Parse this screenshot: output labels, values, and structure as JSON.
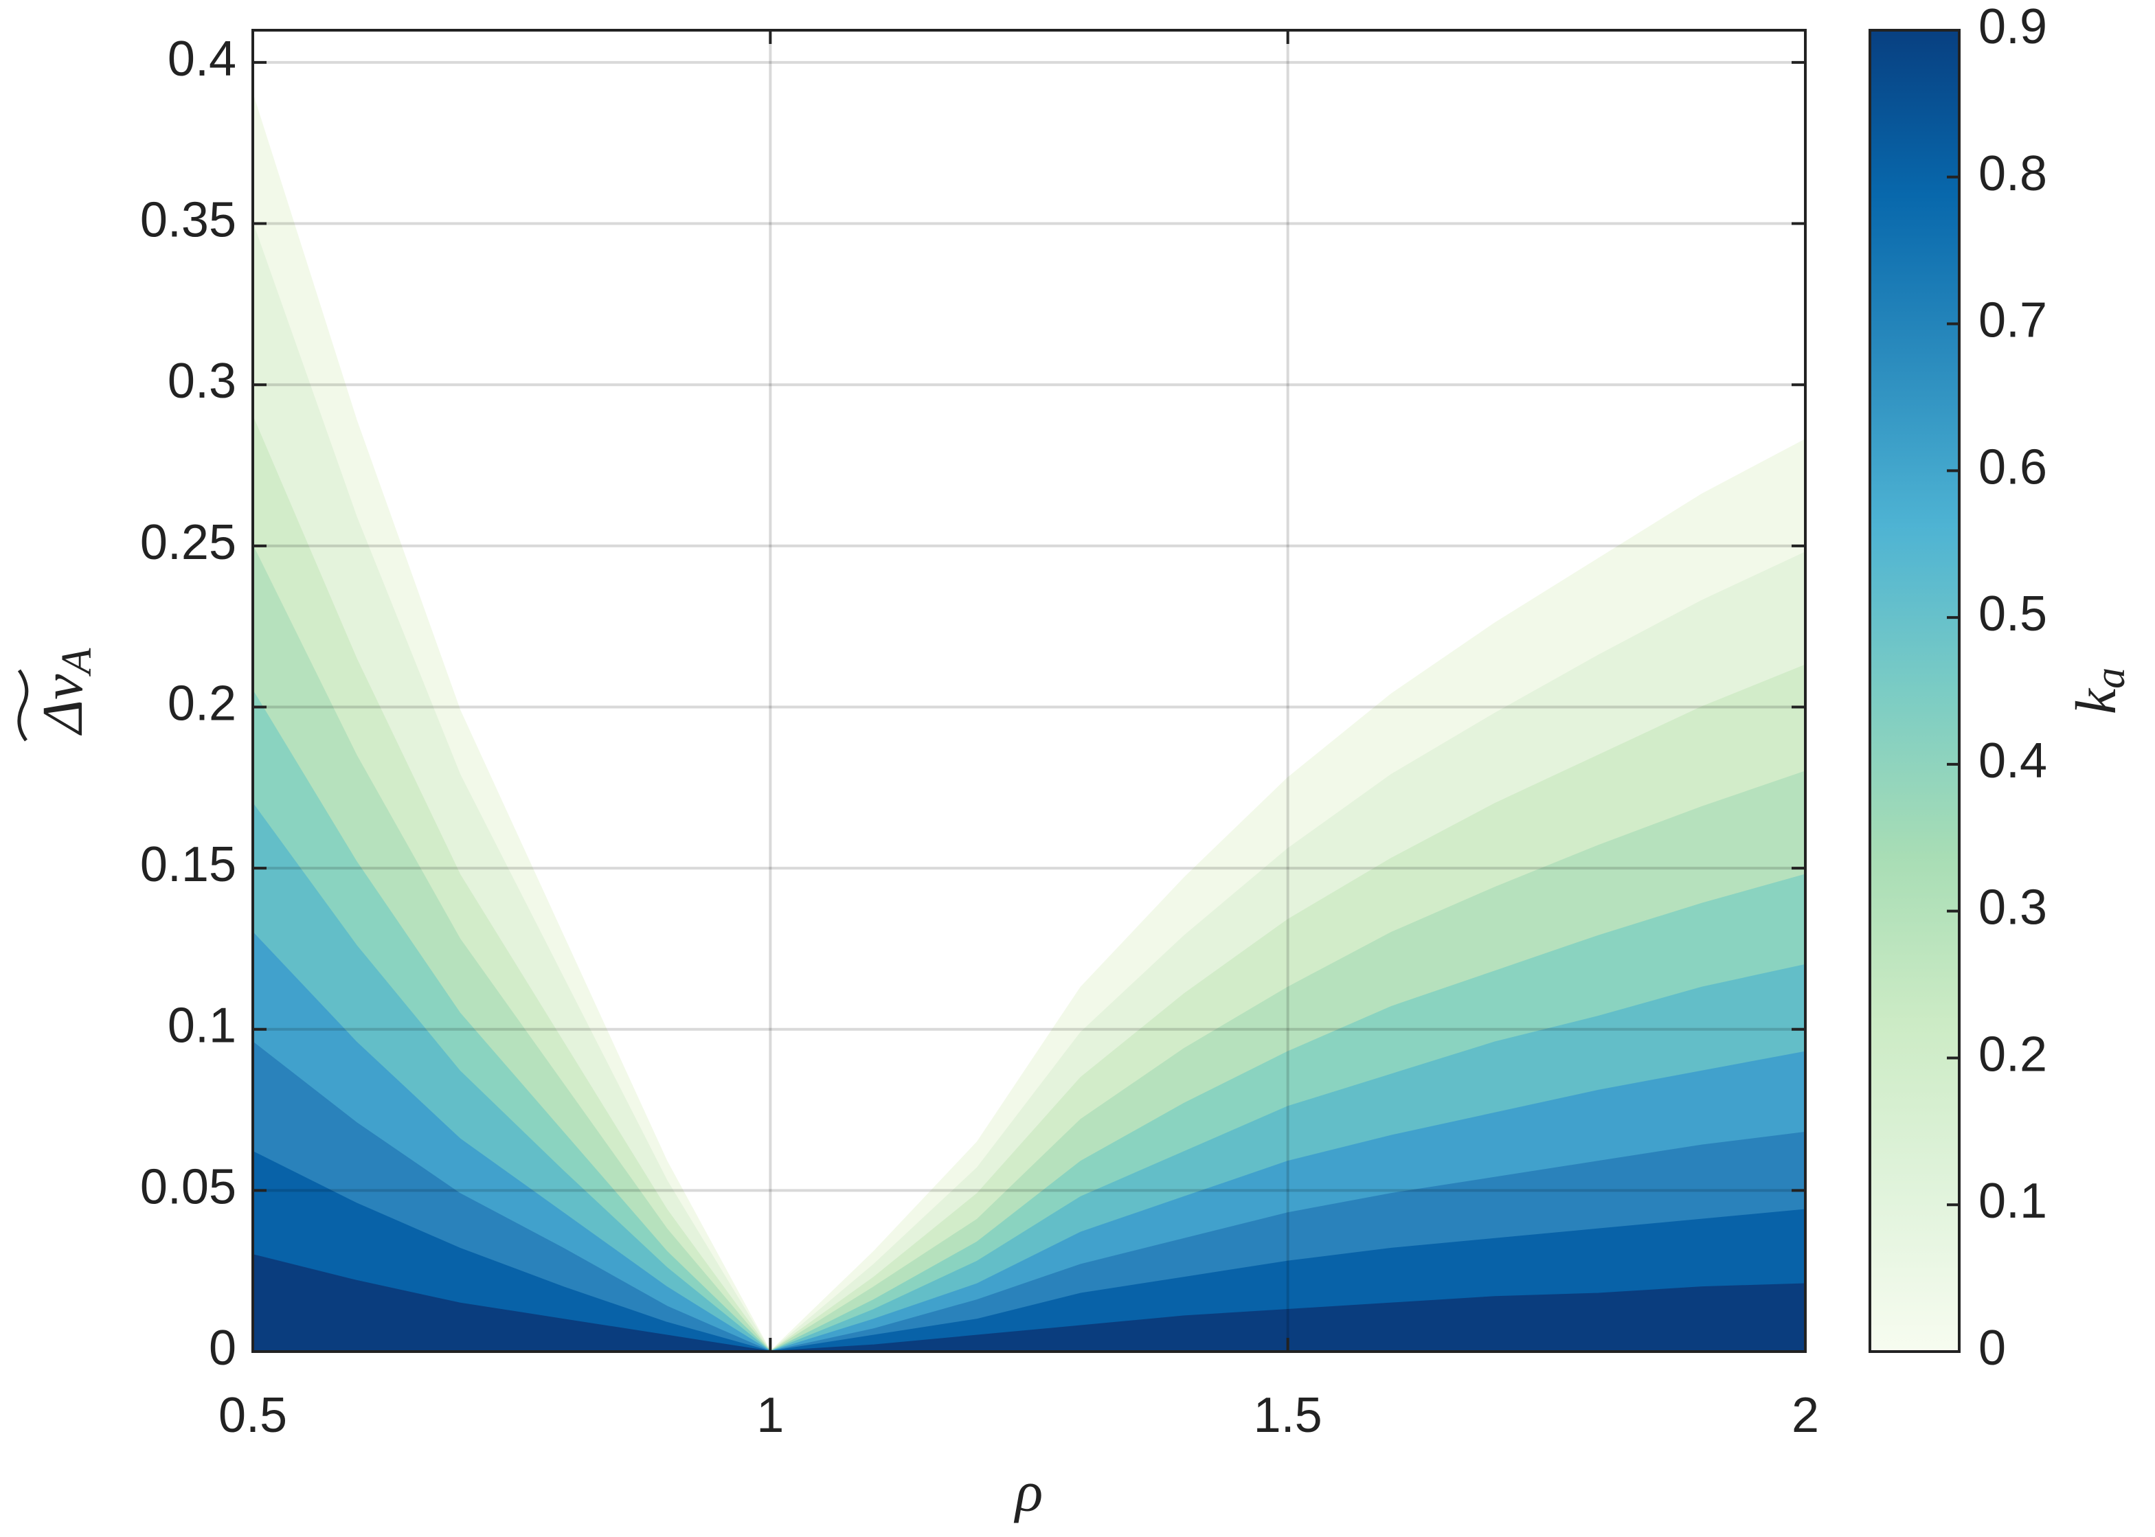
{
  "chart_data": {
    "type": "contour",
    "xlabel": "ρ",
    "ylabel": {
      "text": "Δv",
      "sub": "A"
    },
    "x": [
      0.5,
      0.6,
      0.7,
      0.8,
      0.9,
      1.0,
      1.1,
      1.2,
      1.3,
      1.4,
      1.5,
      1.6,
      1.7,
      1.8,
      1.9,
      2.0
    ],
    "series": [
      {
        "color": "#0a3d7e",
        "values": [
          0.03,
          0.022,
          0.015,
          0.01,
          0.005,
          0,
          0.002,
          0.005,
          0.008,
          0.011,
          0.013,
          0.015,
          0.017,
          0.018,
          0.02,
          0.021
        ]
      },
      {
        "color": "#0862a8",
        "values": [
          0.062,
          0.046,
          0.032,
          0.02,
          0.009,
          0,
          0.005,
          0.01,
          0.018,
          0.023,
          0.028,
          0.032,
          0.035,
          0.038,
          0.041,
          0.044
        ]
      },
      {
        "color": "#2a82bb",
        "values": [
          0.096,
          0.071,
          0.049,
          0.032,
          0.014,
          0,
          0.007,
          0.016,
          0.027,
          0.035,
          0.043,
          0.049,
          0.054,
          0.059,
          0.064,
          0.068
        ]
      },
      {
        "color": "#41a1cc",
        "values": [
          0.13,
          0.096,
          0.066,
          0.043,
          0.02,
          0,
          0.01,
          0.021,
          0.037,
          0.048,
          0.059,
          0.067,
          0.074,
          0.081,
          0.087,
          0.093
        ]
      },
      {
        "color": "#63bec8",
        "values": [
          0.17,
          0.126,
          0.087,
          0.056,
          0.026,
          0,
          0.013,
          0.028,
          0.048,
          0.062,
          0.076,
          0.086,
          0.096,
          0.104,
          0.113,
          0.12
        ]
      },
      {
        "color": "#8ad3c0",
        "values": [
          0.205,
          0.152,
          0.105,
          0.068,
          0.031,
          0,
          0.016,
          0.034,
          0.059,
          0.077,
          0.093,
          0.107,
          0.118,
          0.129,
          0.139,
          0.148
        ]
      },
      {
        "color": "#b6e1bd",
        "values": [
          0.25,
          0.185,
          0.128,
          0.083,
          0.038,
          0,
          0.02,
          0.041,
          0.072,
          0.094,
          0.113,
          0.13,
          0.144,
          0.157,
          0.169,
          0.18
        ]
      },
      {
        "color": "#d2ecc9",
        "values": [
          0.29,
          0.215,
          0.148,
          0.096,
          0.044,
          0,
          0.023,
          0.049,
          0.085,
          0.111,
          0.134,
          0.153,
          0.17,
          0.185,
          0.2,
          0.213
        ]
      },
      {
        "color": "#e4f3dc",
        "values": [
          0.35,
          0.259,
          0.179,
          0.116,
          0.053,
          0,
          0.027,
          0.057,
          0.099,
          0.129,
          0.156,
          0.179,
          0.198,
          0.216,
          0.233,
          0.248
        ]
      },
      {
        "color": "#f2f9e9",
        "values": [
          0.39,
          0.289,
          0.199,
          0.129,
          0.059,
          0,
          0.031,
          0.065,
          0.113,
          0.147,
          0.178,
          0.204,
          0.226,
          0.246,
          0.266,
          0.283
        ]
      }
    ],
    "xlim": [
      0.5,
      2
    ],
    "xticks": [
      0.5,
      1,
      1.5,
      2
    ],
    "ylim": [
      0,
      0.41
    ],
    "yticks": [
      0,
      0.05,
      0.1,
      0.15,
      0.2,
      0.25,
      0.3,
      0.35,
      0.4
    ],
    "grid": true,
    "colorbar": {
      "label": {
        "text": "k",
        "sub": "a"
      },
      "lim": [
        0,
        0.9
      ],
      "ticks": [
        0,
        0.1,
        0.2,
        0.3,
        0.4,
        0.5,
        0.6,
        0.7,
        0.8,
        0.9
      ],
      "colors": [
        "#f7fcf0",
        "#e0f3db",
        "#ccebc5",
        "#a8ddb5",
        "#7bccc4",
        "#4eb3d3",
        "#2b8cbe",
        "#0868ac",
        "#084081"
      ]
    }
  }
}
